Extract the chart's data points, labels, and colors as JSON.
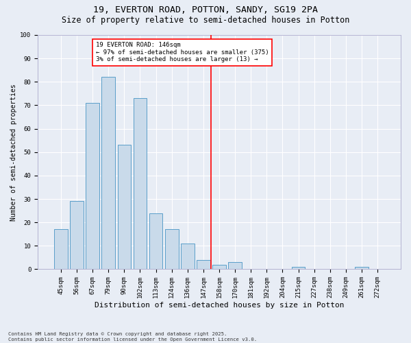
{
  "title1": "19, EVERTON ROAD, POTTON, SANDY, SG19 2PA",
  "title2": "Size of property relative to semi-detached houses in Potton",
  "xlabel": "Distribution of semi-detached houses by size in Potton",
  "ylabel": "Number of semi-detached properties",
  "categories": [
    "45sqm",
    "56sqm",
    "67sqm",
    "79sqm",
    "90sqm",
    "102sqm",
    "113sqm",
    "124sqm",
    "136sqm",
    "147sqm",
    "158sqm",
    "170sqm",
    "181sqm",
    "192sqm",
    "204sqm",
    "215sqm",
    "227sqm",
    "238sqm",
    "249sqm",
    "261sqm",
    "272sqm"
  ],
  "values": [
    17,
    29,
    71,
    82,
    53,
    73,
    24,
    17,
    11,
    4,
    2,
    3,
    0,
    0,
    0,
    1,
    0,
    0,
    0,
    1,
    0
  ],
  "bar_color": "#c9daea",
  "bar_edge_color": "#5a9ec9",
  "vline_x_index": 9.5,
  "vline_color": "red",
  "annotation_text": "19 EVERTON ROAD: 146sqm\n← 97% of semi-detached houses are smaller (375)\n3% of semi-detached houses are larger (13) →",
  "annotation_box_color": "white",
  "annotation_box_edge_color": "red",
  "ylim": [
    0,
    100
  ],
  "yticks": [
    0,
    10,
    20,
    30,
    40,
    50,
    60,
    70,
    80,
    90,
    100
  ],
  "footnote": "Contains HM Land Registry data © Crown copyright and database right 2025.\nContains public sector information licensed under the Open Government Licence v3.0.",
  "bg_color": "#e8edf5",
  "plot_bg_color": "#e8edf5",
  "title1_fontsize": 9.5,
  "title2_fontsize": 8.5,
  "grid_color": "white",
  "annotation_fontsize": 6.5,
  "xlabel_fontsize": 8,
  "ylabel_fontsize": 7,
  "tick_fontsize": 6.5
}
